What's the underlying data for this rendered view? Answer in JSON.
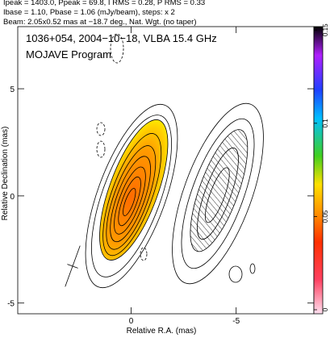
{
  "chart_data": {
    "type": "contour",
    "header": [
      "Ipeak = 1403.0, Ppeak = 69.8, I RMS = 0.28, P RMS = 0.33",
      "Ibase = 1.10, Pbase = 1.06 (mJy/beam), steps: x 2",
      "Beam: 2.05x0.52 mas at −18.7 deg., Nat. Wgt. (no taper)"
    ],
    "title": "1036+054, 2004−10−18, VLBA 15.4 GHz",
    "subtitle": "MOJAVE Program",
    "xlabel": "Relative R.A. (mas)",
    "ylabel": "Relative Declination (mas)",
    "xlim": [
      5.4,
      -8.7
    ],
    "xticks": [
      0,
      -5
    ],
    "ylim": [
      -5.5,
      7.9
    ],
    "yticks": [
      -5,
      0,
      5
    ],
    "clim": [
      0,
      0.154
    ],
    "cticks": [
      0,
      0.05,
      0.1,
      0.15
    ]
  }
}
